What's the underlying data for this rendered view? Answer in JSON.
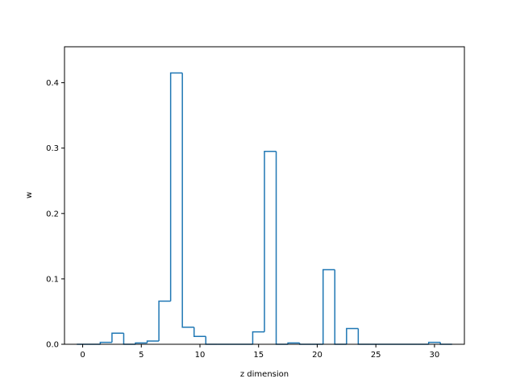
{
  "chart_data": {
    "type": "bar",
    "style": "step-histogram",
    "title": "",
    "xlabel": "z dimension",
    "ylabel": "w",
    "xlim": [
      -1.55,
      32.55
    ],
    "ylim": [
      0,
      0.455
    ],
    "x_ticks": [
      0,
      5,
      10,
      15,
      20,
      25,
      30
    ],
    "y_ticks": [
      0.0,
      0.1,
      0.2,
      0.3,
      0.4
    ],
    "x_tick_labels": [
      "0",
      "5",
      "10",
      "15",
      "20",
      "25",
      "30"
    ],
    "y_tick_labels": [
      "0.0",
      "0.1",
      "0.2",
      "0.3",
      "0.4"
    ],
    "grid": false,
    "line_color": "#1f77b4",
    "categories": [
      0,
      1,
      2,
      3,
      4,
      5,
      6,
      7,
      8,
      9,
      10,
      11,
      12,
      13,
      14,
      15,
      16,
      17,
      18,
      19,
      20,
      21,
      22,
      23,
      24,
      25,
      26,
      27,
      28,
      29,
      30,
      31
    ],
    "values": [
      0.0,
      0.0,
      0.003,
      0.017,
      0.0,
      0.002,
      0.005,
      0.066,
      0.415,
      0.026,
      0.012,
      0.0,
      0.0,
      0.0,
      0.0,
      0.019,
      0.295,
      0.0,
      0.002,
      0.0,
      0.0,
      0.114,
      0.0,
      0.024,
      0.0,
      0.0,
      0.0,
      0.0,
      0.0,
      0.0,
      0.003,
      0.0
    ]
  }
}
